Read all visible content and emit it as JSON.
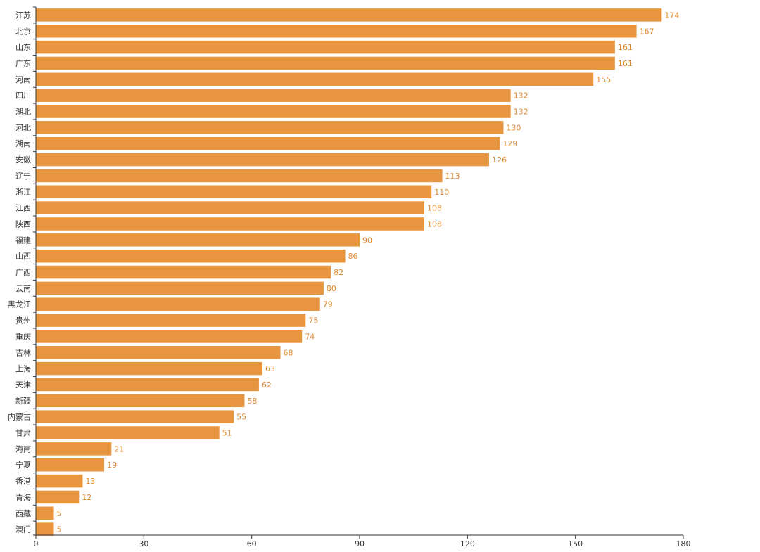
{
  "chart_data": {
    "type": "bar",
    "orientation": "horizontal",
    "title": "",
    "xlabel": "",
    "ylabel": "",
    "categories": [
      "江苏",
      "北京",
      "山东",
      "广东",
      "河南",
      "四川",
      "湖北",
      "河北",
      "湖南",
      "安徽",
      "辽宁",
      "浙江",
      "江西",
      "陕西",
      "福建",
      "山西",
      "广西",
      "云南",
      "黑龙江",
      "贵州",
      "重庆",
      "吉林",
      "上海",
      "天津",
      "新疆",
      "内蒙古",
      "甘肃",
      "海南",
      "宁夏",
      "香港",
      "青海",
      "西藏",
      "澳门"
    ],
    "values": [
      174,
      167,
      161,
      161,
      155,
      132,
      132,
      130,
      129,
      126,
      113,
      110,
      108,
      108,
      90,
      86,
      82,
      80,
      79,
      75,
      74,
      68,
      63,
      62,
      58,
      55,
      51,
      21,
      19,
      13,
      12,
      5,
      5
    ],
    "xlim": [
      0,
      180
    ],
    "xticks": [
      0,
      30,
      60,
      90,
      120,
      150,
      180
    ],
    "grid": false,
    "legend": "none",
    "bar_color": "#E89540",
    "value_label_color": "#E08A30",
    "axis_color": "#333333"
  }
}
